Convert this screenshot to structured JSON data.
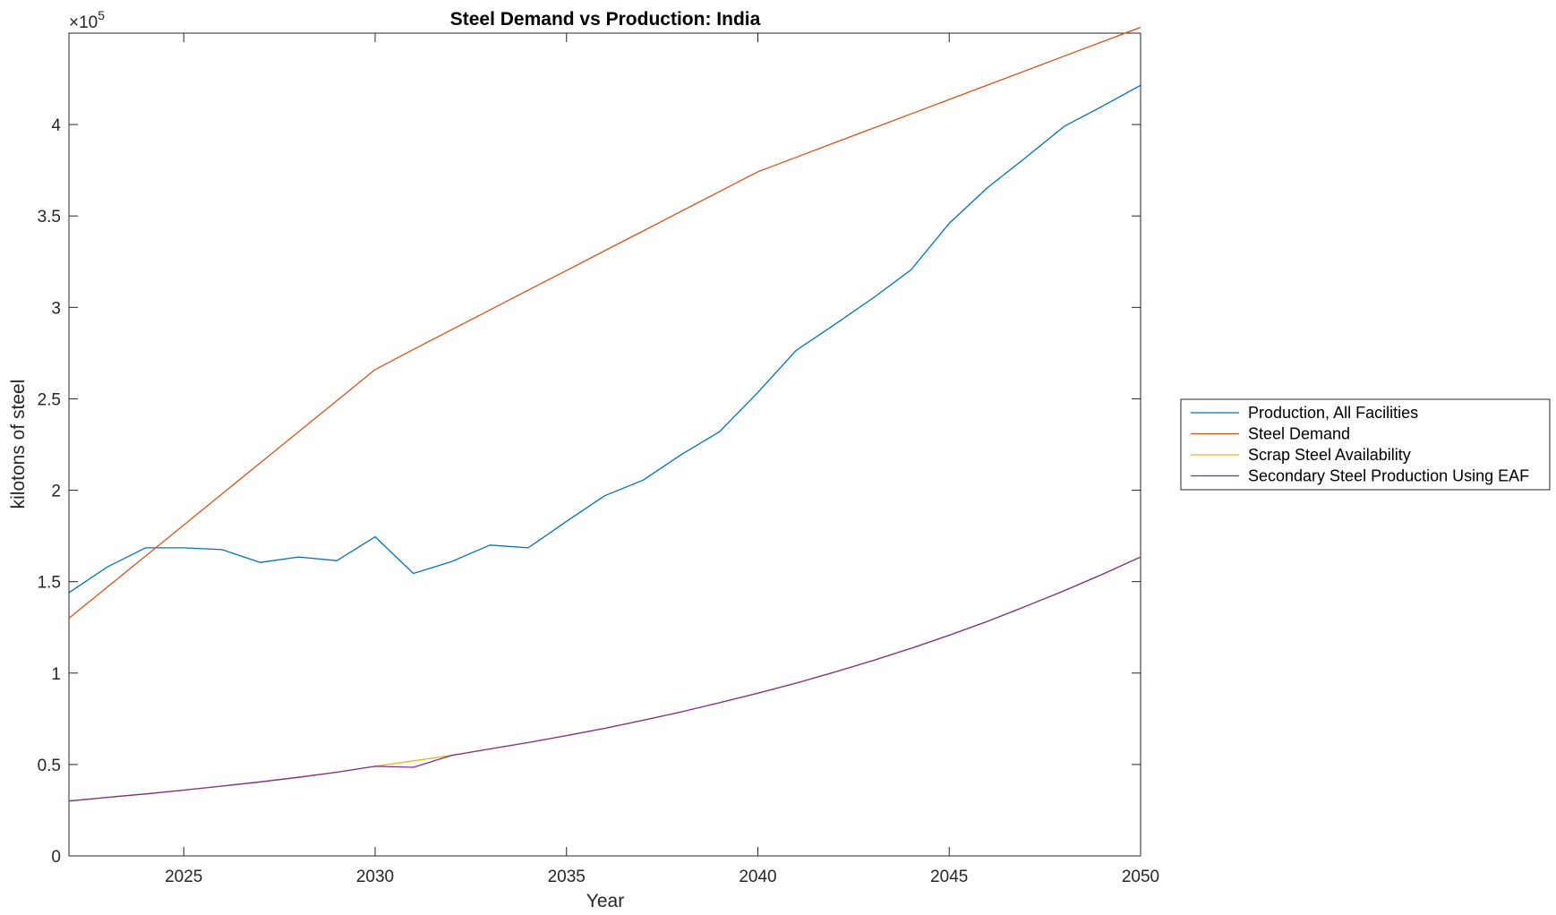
{
  "chart_data": {
    "type": "line",
    "title": "Steel Demand vs Production: India",
    "xlabel": "Year",
    "ylabel": "kilotons of steel",
    "y_exponent_label": "×10",
    "y_exponent_power": "5",
    "xlim": [
      2022,
      2050
    ],
    "ylim": [
      0,
      4.5
    ],
    "y_scale_factor": 100000,
    "xticks": [
      2025,
      2030,
      2035,
      2040,
      2045,
      2050
    ],
    "xtick_labels": [
      "2025",
      "2030",
      "2035",
      "2040",
      "2045",
      "2050"
    ],
    "yticks": [
      0,
      0.5,
      1,
      1.5,
      2,
      2.5,
      3,
      3.5,
      4
    ],
    "ytick_labels": [
      "0",
      "0.5",
      "1",
      "1.5",
      "2",
      "2.5",
      "3",
      "3.5",
      "4"
    ],
    "grid": false,
    "legend_position": "outside-right",
    "x": [
      2022,
      2023,
      2024,
      2025,
      2026,
      2027,
      2028,
      2029,
      2030,
      2031,
      2032,
      2033,
      2034,
      2035,
      2036,
      2037,
      2038,
      2039,
      2040,
      2041,
      2042,
      2043,
      2044,
      2045,
      2046,
      2047,
      2048,
      2049,
      2050
    ],
    "series": [
      {
        "name": "Production, All Facilities",
        "color": "#0072BD",
        "values": [
          1.44,
          1.58,
          1.685,
          1.685,
          1.675,
          1.605,
          1.635,
          1.615,
          1.745,
          1.545,
          1.61,
          1.7,
          1.685,
          1.83,
          1.97,
          2.055,
          2.195,
          2.32,
          2.535,
          2.765,
          2.905,
          3.05,
          3.205,
          3.46,
          3.655,
          3.82,
          3.99,
          4.1,
          4.215
        ]
      },
      {
        "name": "Steel Demand",
        "color": "#D95319",
        "values": [
          1.3,
          1.47,
          1.64,
          1.81,
          1.98,
          2.15,
          2.32,
          2.49,
          2.66,
          2.77,
          2.878,
          2.986,
          3.094,
          3.202,
          3.31,
          3.418,
          3.526,
          3.634,
          3.742,
          3.821,
          3.9,
          3.979,
          4.058,
          4.137,
          4.216,
          4.295,
          4.374,
          4.453,
          4.532
        ]
      },
      {
        "name": "Scrap Steel Availability",
        "color": "#EDB120",
        "values": [
          0.3,
          0.32,
          0.339,
          0.36,
          0.382,
          0.405,
          0.43,
          0.458,
          0.49,
          0.52,
          0.55,
          0.585,
          0.62,
          0.658,
          0.698,
          0.742,
          0.788,
          0.838,
          0.89,
          0.945,
          1.005,
          1.068,
          1.135,
          1.207,
          1.283,
          1.365,
          1.45,
          1.54,
          1.635
        ]
      },
      {
        "name": "Secondary Steel Production Using EAF",
        "color": "#7E2F8E",
        "values": [
          0.3,
          0.32,
          0.339,
          0.36,
          0.382,
          0.405,
          0.43,
          0.458,
          0.49,
          0.485,
          0.55,
          0.585,
          0.62,
          0.658,
          0.698,
          0.742,
          0.788,
          0.838,
          0.89,
          0.945,
          1.005,
          1.068,
          1.135,
          1.207,
          1.283,
          1.365,
          1.45,
          1.54,
          1.635
        ]
      }
    ]
  }
}
